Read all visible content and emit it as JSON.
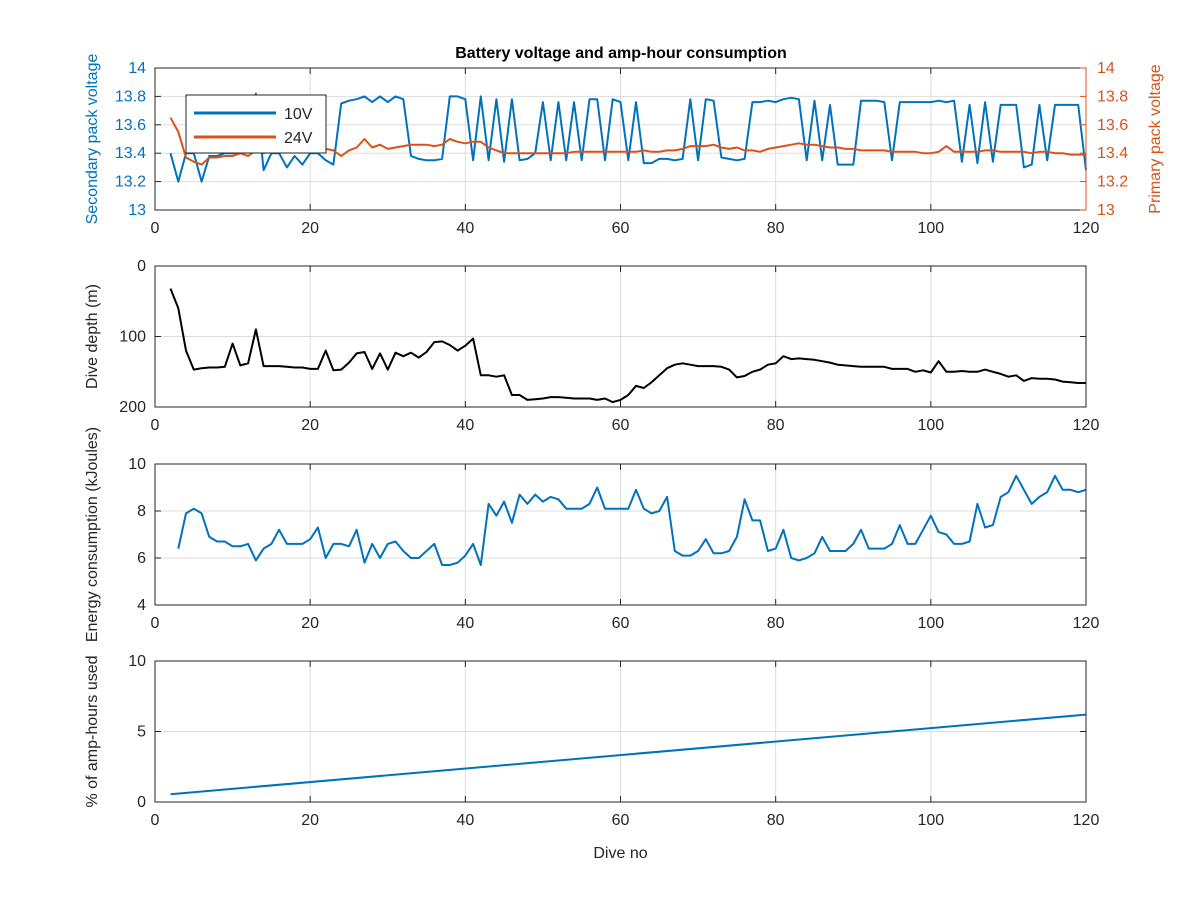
{
  "figure_title": "Battery voltage and amp-hour consumption",
  "colors": {
    "blue": "#0072BD",
    "orange": "#D95319",
    "black": "#000000",
    "grid": "#dddddd",
    "axis": "#262626"
  },
  "chart_data": [
    {
      "type": "line",
      "title": "Battery voltage and amp-hour consumption",
      "xlabel": "",
      "ylabel": "Secondary pack voltage",
      "ylabel_right": "Primary pack voltage",
      "xlim": [
        0,
        120
      ],
      "ylim": [
        13,
        14
      ],
      "ylim_right": [
        13,
        14
      ],
      "xticks": [
        0,
        20,
        40,
        60,
        80,
        100,
        120
      ],
      "yticks": [
        13,
        13.2,
        13.4,
        13.6,
        13.8,
        14
      ],
      "yticks_right": [
        13,
        13.2,
        13.4,
        13.6,
        13.8,
        14
      ],
      "grid": true,
      "legend": {
        "position": "top-left",
        "entries": [
          "10V",
          "24V"
        ]
      },
      "series": [
        {
          "name": "10V",
          "axis": "left",
          "color": "#0072BD",
          "x": [
            2,
            3,
            4,
            5,
            6,
            7,
            8,
            9,
            10,
            11,
            12,
            13,
            14,
            15,
            16,
            17,
            18,
            19,
            20,
            21,
            22,
            23,
            24,
            25,
            26,
            27,
            28,
            29,
            30,
            31,
            32,
            33,
            34,
            35,
            36,
            37,
            38,
            39,
            40,
            41,
            42,
            43,
            44,
            45,
            46,
            47,
            48,
            49,
            50,
            51,
            52,
            53,
            54,
            55,
            56,
            57,
            58,
            59,
            60,
            61,
            62,
            63,
            64,
            65,
            66,
            67,
            68,
            69,
            70,
            71,
            72,
            73,
            74,
            75,
            76,
            77,
            78,
            79,
            80,
            81,
            82,
            83,
            84,
            85,
            86,
            87,
            88,
            89,
            90,
            91,
            92,
            93,
            94,
            95,
            96,
            97,
            98,
            99,
            100,
            101,
            102,
            103,
            104,
            105,
            106,
            107,
            108,
            109,
            110,
            111,
            112,
            113,
            114,
            115,
            116,
            117,
            118,
            119,
            120
          ],
          "y": [
            13.4,
            13.2,
            13.4,
            13.4,
            13.2,
            13.38,
            13.38,
            13.4,
            13.4,
            13.4,
            13.42,
            13.82,
            13.28,
            13.4,
            13.4,
            13.3,
            13.38,
            13.32,
            13.4,
            13.4,
            13.35,
            13.32,
            13.75,
            13.77,
            13.78,
            13.8,
            13.76,
            13.8,
            13.76,
            13.8,
            13.78,
            13.38,
            13.36,
            13.35,
            13.35,
            13.36,
            13.8,
            13.8,
            13.78,
            13.35,
            13.8,
            13.35,
            13.78,
            13.34,
            13.78,
            13.35,
            13.36,
            13.4,
            13.76,
            13.35,
            13.76,
            13.35,
            13.76,
            13.35,
            13.78,
            13.78,
            13.35,
            13.78,
            13.76,
            13.35,
            13.76,
            13.33,
            13.33,
            13.36,
            13.36,
            13.35,
            13.36,
            13.78,
            13.35,
            13.78,
            13.77,
            13.37,
            13.36,
            13.35,
            13.36,
            13.76,
            13.76,
            13.77,
            13.76,
            13.78,
            13.79,
            13.78,
            13.35,
            13.77,
            13.35,
            13.74,
            13.32,
            13.32,
            13.32,
            13.77,
            13.77,
            13.77,
            13.76,
            13.35,
            13.76,
            13.76,
            13.76,
            13.76,
            13.76,
            13.77,
            13.76,
            13.77,
            13.34,
            13.74,
            13.33,
            13.76,
            13.34,
            13.74,
            13.74,
            13.74,
            13.3,
            13.32,
            13.74,
            13.35,
            13.74,
            13.74,
            13.74,
            13.74,
            13.28
          ]
        },
        {
          "name": "24V",
          "axis": "right",
          "color": "#D95319",
          "x": [
            2,
            3,
            4,
            5,
            6,
            7,
            8,
            9,
            10,
            11,
            12,
            13,
            14,
            15,
            16,
            17,
            18,
            19,
            20,
            21,
            22,
            23,
            24,
            25,
            26,
            27,
            28,
            29,
            30,
            31,
            32,
            33,
            34,
            35,
            36,
            37,
            38,
            39,
            40,
            41,
            42,
            43,
            44,
            45,
            46,
            47,
            48,
            49,
            50,
            51,
            52,
            53,
            54,
            55,
            56,
            57,
            58,
            59,
            60,
            61,
            62,
            63,
            64,
            65,
            66,
            67,
            68,
            69,
            70,
            71,
            72,
            73,
            74,
            75,
            76,
            77,
            78,
            79,
            80,
            81,
            82,
            83,
            84,
            85,
            86,
            87,
            88,
            89,
            90,
            91,
            92,
            93,
            94,
            95,
            96,
            97,
            98,
            99,
            100,
            101,
            102,
            103,
            104,
            105,
            106,
            107,
            108,
            109,
            110,
            111,
            112,
            113,
            114,
            115,
            116,
            117,
            118,
            119,
            120
          ],
          "y": [
            13.65,
            13.55,
            13.37,
            13.34,
            13.32,
            13.37,
            13.37,
            13.38,
            13.38,
            13.4,
            13.38,
            13.42,
            13.4,
            13.42,
            13.42,
            13.41,
            13.42,
            13.42,
            13.42,
            13.43,
            13.43,
            13.42,
            13.38,
            13.42,
            13.44,
            13.5,
            13.44,
            13.46,
            13.43,
            13.44,
            13.45,
            13.46,
            13.46,
            13.46,
            13.45,
            13.46,
            13.5,
            13.48,
            13.47,
            13.48,
            13.48,
            13.44,
            13.42,
            13.4,
            13.4,
            13.4,
            13.4,
            13.4,
            13.4,
            13.4,
            13.4,
            13.4,
            13.41,
            13.41,
            13.41,
            13.41,
            13.41,
            13.41,
            13.41,
            13.41,
            13.41,
            13.42,
            13.41,
            13.41,
            13.42,
            13.42,
            13.43,
            13.45,
            13.45,
            13.45,
            13.46,
            13.44,
            13.43,
            13.44,
            13.42,
            13.42,
            13.41,
            13.43,
            13.44,
            13.45,
            13.46,
            13.47,
            13.46,
            13.46,
            13.45,
            13.44,
            13.44,
            13.43,
            13.43,
            13.42,
            13.42,
            13.42,
            13.42,
            13.41,
            13.41,
            13.41,
            13.41,
            13.4,
            13.4,
            13.41,
            13.45,
            13.41,
            13.41,
            13.41,
            13.41,
            13.42,
            13.42,
            13.41,
            13.41,
            13.41,
            13.41,
            13.4,
            13.41,
            13.41,
            13.4,
            13.4,
            13.39,
            13.39,
            13.39
          ]
        }
      ]
    },
    {
      "type": "line",
      "title": "",
      "xlabel": "",
      "ylabel": "Dive depth (m)",
      "xlim": [
        0,
        120
      ],
      "ylim": [
        0,
        200
      ],
      "y_reversed": true,
      "xticks": [
        0,
        20,
        40,
        60,
        80,
        100,
        120
      ],
      "yticks": [
        0,
        100,
        200
      ],
      "grid": true,
      "series": [
        {
          "color": "#000000",
          "x": [
            2,
            3,
            4,
            5,
            6,
            7,
            8,
            9,
            10,
            11,
            12,
            13,
            14,
            15,
            16,
            17,
            18,
            19,
            20,
            21,
            22,
            23,
            24,
            25,
            26,
            27,
            28,
            29,
            30,
            31,
            32,
            33,
            34,
            35,
            36,
            37,
            38,
            39,
            40,
            41,
            42,
            43,
            44,
            45,
            46,
            47,
            48,
            49,
            50,
            51,
            52,
            53,
            54,
            55,
            56,
            57,
            58,
            59,
            60,
            61,
            62,
            63,
            64,
            65,
            66,
            67,
            68,
            69,
            70,
            71,
            72,
            73,
            74,
            75,
            76,
            77,
            78,
            79,
            80,
            81,
            82,
            83,
            84,
            85,
            86,
            87,
            88,
            89,
            90,
            91,
            92,
            93,
            94,
            95,
            96,
            97,
            98,
            99,
            100,
            101,
            102,
            103,
            104,
            105,
            106,
            107,
            108,
            109,
            110,
            111,
            112,
            113,
            114,
            115,
            116,
            117,
            118,
            119,
            120
          ],
          "y": [
            32,
            60,
            120,
            147,
            145,
            144,
            144,
            143,
            110,
            141,
            138,
            90,
            142,
            142,
            142,
            143,
            144,
            144,
            146,
            146,
            120,
            148,
            147,
            137,
            124,
            122,
            146,
            124,
            147,
            123,
            128,
            123,
            130,
            122,
            108,
            107,
            112,
            120,
            113,
            103,
            155,
            155,
            157,
            155,
            183,
            183,
            190,
            189,
            188,
            186,
            186,
            187,
            188,
            188,
            188,
            190,
            188,
            193,
            190,
            183,
            170,
            173,
            165,
            155,
            145,
            140,
            138,
            140,
            142,
            142,
            142,
            143,
            147,
            158,
            156,
            150,
            147,
            140,
            138,
            128,
            132,
            131,
            132,
            133,
            135,
            137,
            140,
            141,
            142,
            143,
            143,
            143,
            143,
            146,
            146,
            146,
            150,
            148,
            151,
            135,
            150,
            150,
            149,
            150,
            150,
            147,
            150,
            153,
            157,
            155,
            163,
            159,
            160,
            160,
            161,
            164,
            165,
            166,
            166
          ]
        }
      ]
    },
    {
      "type": "line",
      "title": "",
      "xlabel": "",
      "ylabel": "Energy consumption (kJoules)",
      "xlim": [
        0,
        120
      ],
      "ylim": [
        4,
        10
      ],
      "xticks": [
        0,
        20,
        40,
        60,
        80,
        100,
        120
      ],
      "yticks": [
        4,
        6,
        8,
        10
      ],
      "grid": true,
      "series": [
        {
          "color": "#0072BD",
          "x": [
            3,
            4,
            5,
            6,
            7,
            8,
            9,
            10,
            11,
            12,
            13,
            14,
            15,
            16,
            17,
            18,
            19,
            20,
            21,
            22,
            23,
            24,
            25,
            26,
            27,
            28,
            29,
            30,
            31,
            32,
            33,
            34,
            35,
            36,
            37,
            38,
            39,
            40,
            41,
            42,
            43,
            44,
            45,
            46,
            47,
            48,
            49,
            50,
            51,
            52,
            53,
            54,
            55,
            56,
            57,
            58,
            59,
            60,
            61,
            62,
            63,
            64,
            65,
            66,
            67,
            68,
            69,
            70,
            71,
            72,
            73,
            74,
            75,
            76,
            77,
            78,
            79,
            80,
            81,
            82,
            83,
            84,
            85,
            86,
            87,
            88,
            89,
            90,
            91,
            92,
            93,
            94,
            95,
            96,
            97,
            98,
            99,
            100,
            101,
            102,
            103,
            104,
            105,
            106,
            107,
            108,
            109,
            110,
            111,
            112,
            113,
            114,
            115,
            116,
            117,
            118,
            119,
            120
          ],
          "y": [
            6.4,
            7.9,
            8.1,
            7.9,
            6.9,
            6.7,
            6.7,
            6.5,
            6.5,
            6.6,
            5.9,
            6.4,
            6.6,
            7.2,
            6.6,
            6.6,
            6.6,
            6.8,
            7.3,
            6.0,
            6.6,
            6.6,
            6.5,
            7.2,
            5.8,
            6.6,
            6.0,
            6.6,
            6.7,
            6.3,
            6.0,
            6.0,
            6.3,
            6.6,
            5.7,
            5.7,
            5.8,
            6.1,
            6.6,
            5.7,
            8.3,
            7.8,
            8.4,
            7.5,
            8.7,
            8.3,
            8.7,
            8.4,
            8.6,
            8.5,
            8.1,
            8.1,
            8.1,
            8.3,
            9.0,
            8.1,
            8.1,
            8.1,
            8.1,
            8.9,
            8.1,
            7.9,
            8.0,
            8.6,
            6.3,
            6.1,
            6.1,
            6.3,
            6.8,
            6.2,
            6.2,
            6.3,
            6.9,
            8.5,
            7.6,
            7.6,
            6.3,
            6.4,
            7.2,
            6.0,
            5.9,
            6.0,
            6.2,
            6.9,
            6.3,
            6.3,
            6.3,
            6.6,
            7.2,
            6.4,
            6.4,
            6.4,
            6.6,
            7.4,
            6.6,
            6.6,
            7.2,
            7.8,
            7.1,
            7.0,
            6.6,
            6.6,
            6.7,
            8.3,
            7.3,
            7.4,
            8.6,
            8.8,
            9.5,
            8.9,
            8.3,
            8.6,
            8.8,
            9.5,
            8.9,
            8.9,
            8.8,
            8.9
          ]
        }
      ]
    },
    {
      "type": "line",
      "title": "",
      "xlabel": "Dive no",
      "ylabel": "% of amp-hours used",
      "xlim": [
        0,
        120
      ],
      "ylim": [
        0,
        10
      ],
      "xticks": [
        0,
        20,
        40,
        60,
        80,
        100,
        120
      ],
      "yticks": [
        0,
        5,
        10
      ],
      "grid": true,
      "series": [
        {
          "color": "#0072BD",
          "x": [
            2,
            120
          ],
          "y": [
            0.55,
            6.2
          ]
        }
      ]
    }
  ]
}
